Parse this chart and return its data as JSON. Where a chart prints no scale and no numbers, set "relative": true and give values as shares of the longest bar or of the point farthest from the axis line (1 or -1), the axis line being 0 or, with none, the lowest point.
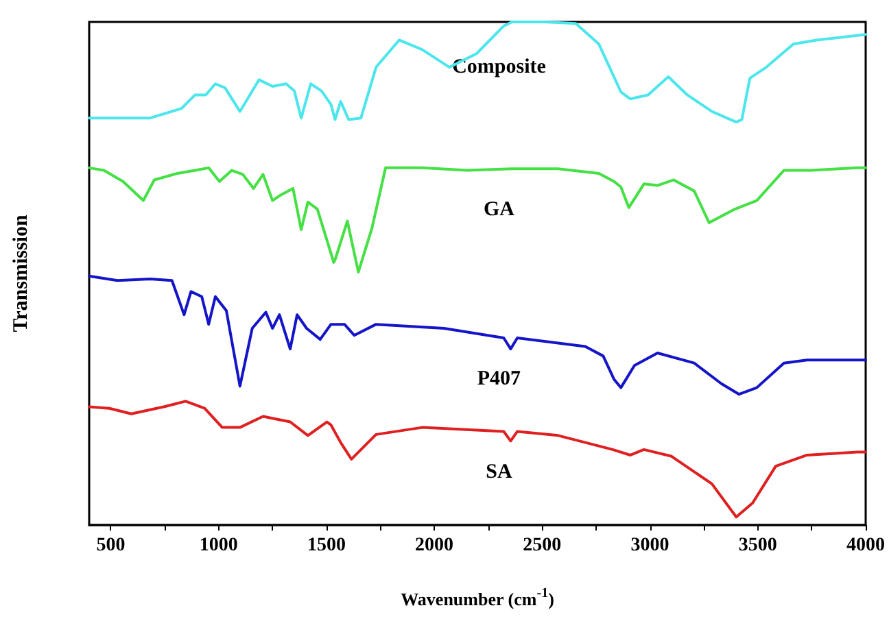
{
  "chart_data": {
    "type": "line",
    "xlabel": "Wavenumber (cm$^{-1}$)",
    "ylabel": "Transmission",
    "relative": true,
    "xlim": [
      400,
      4000
    ],
    "xticks": [
      500,
      {
        "value": 750,
        "label": null
      },
      1000,
      {
        "value": 1250,
        "label": null
      },
      1500,
      {
        "value": 1750,
        "label": null
      },
      2000,
      {
        "value": 2250,
        "label": null
      },
      2500,
      {
        "value": 2750,
        "label": null
      },
      3000,
      {
        "value": 3250,
        "label": null
      },
      3500,
      {
        "value": 3750,
        "label": null
      },
      4000
    ],
    "series": [
      {
        "name": "Composite",
        "color": "#4ce6ec",
        "x": [
          400,
          683,
          828,
          891,
          941,
          985,
          1030,
          1099,
          1187,
          1250,
          1313,
          1351,
          1383,
          1427,
          1477,
          1521,
          1540,
          1566,
          1603,
          1660,
          1730,
          1837,
          1944,
          2070,
          2196,
          2322,
          2360,
          2511,
          2656,
          2763,
          2865,
          2909,
          2991,
          3085,
          3173,
          3287,
          3400,
          3426,
          3463,
          3539,
          3665,
          3772,
          3961,
          4000
        ],
        "values": [
          0.809,
          0.809,
          0.828,
          0.855,
          0.855,
          0.877,
          0.869,
          0.822,
          0.885,
          0.872,
          0.877,
          0.863,
          0.809,
          0.877,
          0.863,
          0.836,
          0.806,
          0.842,
          0.806,
          0.809,
          0.91,
          0.964,
          0.945,
          0.91,
          0.937,
          0.992,
          1,
          1,
          0.997,
          0.956,
          0.861,
          0.847,
          0.855,
          0.891,
          0.855,
          0.822,
          0.801,
          0.806,
          0.888,
          0.91,
          0.956,
          0.964,
          0.973,
          0.975
        ]
      },
      {
        "name": "GA",
        "color": "#44e044",
        "x": [
          400,
          468,
          557,
          651,
          702,
          809,
          891,
          954,
          1004,
          1061,
          1112,
          1162,
          1206,
          1250,
          1288,
          1345,
          1383,
          1414,
          1458,
          1534,
          1540,
          1597,
          1648,
          1711,
          1774,
          1944,
          2152,
          2360,
          2574,
          2763,
          2833,
          2865,
          2902,
          2972,
          3035,
          3110,
          3205,
          3274,
          3394,
          3495,
          3621,
          3747,
          3961,
          4000
        ],
        "values": [
          0.71,
          0.705,
          0.683,
          0.645,
          0.686,
          0.699,
          0.705,
          0.71,
          0.683,
          0.705,
          0.697,
          0.669,
          0.697,
          0.645,
          0.656,
          0.669,
          0.587,
          0.642,
          0.628,
          0.522,
          0.527,
          0.604,
          0.503,
          0.59,
          0.71,
          0.71,
          0.705,
          0.708,
          0.708,
          0.699,
          0.683,
          0.672,
          0.631,
          0.678,
          0.675,
          0.686,
          0.664,
          0.601,
          0.628,
          0.645,
          0.705,
          0.705,
          0.71,
          0.71
        ]
      },
      {
        "name": "P407",
        "color": "#1414c8",
        "x": [
          400,
          531,
          683,
          784,
          840,
          872,
          922,
          954,
          985,
          1036,
          1099,
          1156,
          1219,
          1250,
          1282,
          1332,
          1364,
          1408,
          1471,
          1521,
          1584,
          1629,
          1730,
          2045,
          2322,
          2354,
          2385,
          2700,
          2783,
          2833,
          2865,
          2928,
          3035,
          3205,
          3331,
          3413,
          3495,
          3621,
          3728,
          3961,
          4000
        ],
        "values": [
          0.495,
          0.486,
          0.489,
          0.486,
          0.418,
          0.464,
          0.454,
          0.399,
          0.454,
          0.426,
          0.276,
          0.391,
          0.423,
          0.391,
          0.418,
          0.35,
          0.418,
          0.391,
          0.369,
          0.399,
          0.399,
          0.377,
          0.399,
          0.391,
          0.372,
          0.35,
          0.372,
          0.355,
          0.336,
          0.29,
          0.273,
          0.317,
          0.342,
          0.322,
          0.281,
          0.26,
          0.273,
          0.322,
          0.328,
          0.328,
          0.328
        ]
      },
      {
        "name": "SA",
        "color": "#e02020",
        "x": [
          400,
          494,
          595,
          746,
          847,
          935,
          1017,
          1099,
          1206,
          1332,
          1414,
          1502,
          1521,
          1566,
          1616,
          1730,
          1944,
          2322,
          2354,
          2385,
          2574,
          2827,
          2909,
          2972,
          3098,
          3287,
          3400,
          3476,
          3583,
          3728,
          3961,
          4000
        ],
        "values": [
          0.235,
          0.232,
          0.221,
          0.235,
          0.246,
          0.232,
          0.194,
          0.194,
          0.216,
          0.205,
          0.178,
          0.205,
          0.199,
          0.164,
          0.131,
          0.18,
          0.194,
          0.186,
          0.167,
          0.186,
          0.178,
          0.15,
          0.139,
          0.15,
          0.137,
          0.082,
          0.016,
          0.044,
          0.117,
          0.139,
          0.145,
          0.145
        ]
      }
    ]
  }
}
